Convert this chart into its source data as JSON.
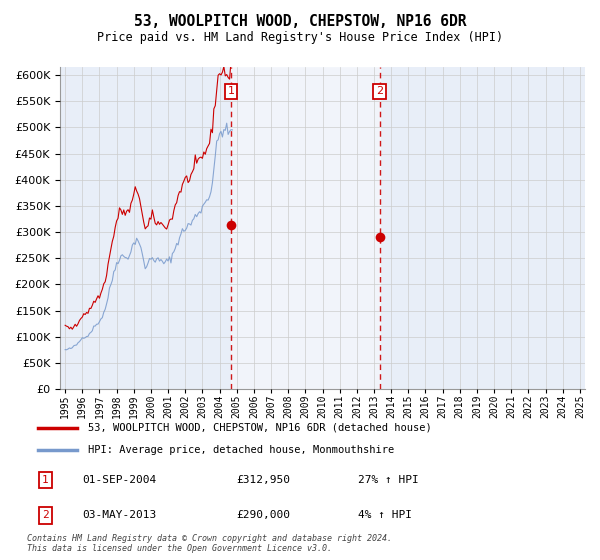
{
  "title": "53, WOOLPITCH WOOD, CHEPSTOW, NP16 6DR",
  "subtitle": "Price paid vs. HM Land Registry's House Price Index (HPI)",
  "ylabel_values": [
    0,
    50000,
    100000,
    150000,
    200000,
    250000,
    300000,
    350000,
    400000,
    450000,
    500000,
    550000,
    600000
  ],
  "ylim": [
    0,
    615000
  ],
  "xlim_start": 1994.7,
  "xlim_end": 2025.3,
  "bg_color": "#ffffff",
  "plot_bg_color": "#e8eef8",
  "shade_color": "#d0daf0",
  "grid_color": "#cccccc",
  "line1_color": "#cc0000",
  "line2_color": "#7799cc",
  "vline_color": "#cc0000",
  "vline1_x": 2004.67,
  "vline2_x": 2013.33,
  "marker1_label": "1",
  "marker2_label": "2",
  "legend_label1": "53, WOOLPITCH WOOD, CHEPSTOW, NP16 6DR (detached house)",
  "legend_label2": "HPI: Average price, detached house, Monmouthshire",
  "table_row1": [
    "1",
    "01-SEP-2004",
    "£312,950",
    "27% ↑ HPI"
  ],
  "table_row2": [
    "2",
    "03-MAY-2013",
    "£290,000",
    "4% ↑ HPI"
  ],
  "footer": "Contains HM Land Registry data © Crown copyright and database right 2024.\nThis data is licensed under the Open Government Licence v3.0.",
  "sale1_y": 312950,
  "sale2_y": 290000,
  "hpi_base": [
    75000,
    75500,
    76000,
    77000,
    78000,
    79500,
    81000,
    83000,
    85000,
    88000,
    91500,
    95000,
    98000,
    100000,
    101000,
    101500,
    102500,
    106000,
    110000,
    114000,
    118000,
    121000,
    124000,
    127000,
    130000,
    134000,
    139000,
    146000,
    154000,
    164000,
    176000,
    188000,
    200000,
    211000,
    222000,
    232000,
    241000,
    247000,
    251000,
    254000,
    254000,
    253000,
    252000,
    252000,
    254000,
    258000,
    264000,
    271000,
    278000,
    284000,
    287000,
    285000,
    280000,
    268000,
    254000,
    241000,
    233000,
    235000,
    240000,
    246000,
    250000,
    252000,
    250000,
    247000,
    246000,
    246000,
    245000,
    244000,
    243000,
    242000,
    242000,
    243000,
    245000,
    247000,
    251000,
    256000,
    262000,
    270000,
    278000,
    284000,
    290000,
    295000,
    300000,
    304000,
    307000,
    310000,
    312000,
    314000,
    316000,
    320000,
    325000,
    329000,
    333000,
    337000,
    341000,
    344000,
    348000,
    352000,
    357000,
    363000,
    369000,
    370000,
    379000,
    399000,
    421000,
    443000,
    461000,
    475000,
    486000,
    493000,
    496000,
    496000,
    494000,
    490000,
    488000,
    490000,
    496000,
    504000
  ],
  "price_base": [
    120000,
    119000,
    118000,
    117000,
    116000,
    117000,
    118000,
    120000,
    122000,
    126000,
    131000,
    136000,
    141000,
    144000,
    145000,
    145500,
    147000,
    151000,
    156000,
    161000,
    166000,
    169000,
    172000,
    175000,
    178000,
    183000,
    190000,
    199000,
    209000,
    222000,
    237000,
    252000,
    267000,
    281000,
    295000,
    308000,
    320000,
    330000,
    337000,
    340000,
    340000,
    339000,
    337000,
    336000,
    337000,
    342000,
    350000,
    359000,
    368000,
    376000,
    380000,
    377000,
    369000,
    353000,
    334000,
    317000,
    305000,
    306000,
    312000,
    320000,
    326000,
    329000,
    326000,
    321000,
    319000,
    318000,
    316000,
    315000,
    313000,
    312000,
    312000,
    313000,
    316000,
    319000,
    324000,
    331000,
    340000,
    350000,
    361000,
    369000,
    377000,
    383000,
    389000,
    394000,
    398000,
    401000,
    403000,
    404000,
    407000,
    412000,
    418000,
    423000,
    428000,
    432000,
    436000,
    439000,
    443000,
    448000,
    454000,
    461000,
    468000,
    469000,
    480000,
    504000,
    530000,
    555000,
    575000,
    590000,
    602000,
    610000,
    612000,
    610000,
    605000,
    599000,
    595000,
    598000,
    606000,
    617000
  ]
}
